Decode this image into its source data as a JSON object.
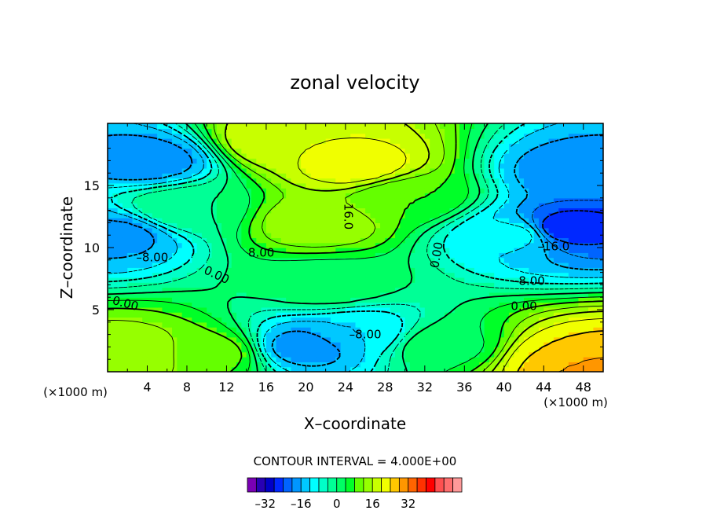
{
  "chart_data": {
    "type": "heatmap",
    "title": "zonal velocity",
    "xlabel": "X–coordinate",
    "ylabel": "Z–coordinate",
    "x_unit": "(×1000 m)",
    "x_unit_right": "(×1000 m)",
    "xlim": [
      0,
      50
    ],
    "ylim": [
      0,
      20
    ],
    "x_ticks": [
      4,
      8,
      12,
      16,
      20,
      24,
      28,
      32,
      36,
      40,
      44,
      48
    ],
    "y_ticks": [
      5,
      10,
      15
    ],
    "contour_interval_text": "CONTOUR INTERVAL = 4.000E+00",
    "contour_interval": 4,
    "color_levels": [
      -36,
      -32,
      -28,
      -24,
      -20,
      -16,
      -12,
      -8,
      -4,
      0,
      4,
      8,
      12,
      16,
      20,
      24,
      28,
      32,
      36
    ],
    "colors": [
      "#7a00b4",
      "#2800b4",
      "#0000c8",
      "#0028ff",
      "#0064ff",
      "#0096ff",
      "#00c8ff",
      "#00ffff",
      "#00ffc8",
      "#00ff96",
      "#00ff64",
      "#00ff28",
      "#64ff00",
      "#96ff00",
      "#c8ff00",
      "#f0ff00",
      "#ffc800",
      "#ff9600",
      "#ff6400",
      "#ff3200",
      "#ff0000",
      "#ff5050",
      "#ff6e6e",
      "#ff9a9a"
    ],
    "colorbar_ticks": [
      "–32",
      "–16",
      "0",
      "16",
      "32"
    ],
    "contour_labels": [
      "16.0",
      "8.00",
      "0.00",
      "–8.00",
      "–16.0"
    ],
    "grid": false,
    "features": [
      {
        "x": 25,
        "z": 16.5,
        "value": 22
      },
      {
        "x": 17.5,
        "z": 18.5,
        "value": 20
      },
      {
        "x": 21,
        "z": 12,
        "value": 15
      },
      {
        "x": 4,
        "z": 17,
        "value": -18
      },
      {
        "x": 1,
        "z": 11,
        "value": -17
      },
      {
        "x": 47,
        "z": 16,
        "value": -18
      },
      {
        "x": 46,
        "z": 11.5,
        "value": -26
      },
      {
        "x": 41,
        "z": 11,
        "value": -11
      },
      {
        "x": 20,
        "z": 2,
        "value": -18
      },
      {
        "x": 25,
        "z": 3,
        "value": -12
      },
      {
        "x": 46,
        "z": 1,
        "value": 24
      },
      {
        "x": 48,
        "z": 0.3,
        "value": 30
      },
      {
        "x": 3,
        "z": 1.5,
        "value": 15
      },
      {
        "x": 10,
        "z": 1.5,
        "value": 10
      },
      {
        "x": 34,
        "z": 2,
        "value": 3
      },
      {
        "x": 30,
        "z": 14,
        "value": 8
      },
      {
        "x": 8,
        "z": 13,
        "value": 0
      },
      {
        "x": 22,
        "z": 7,
        "value": 2
      }
    ]
  }
}
